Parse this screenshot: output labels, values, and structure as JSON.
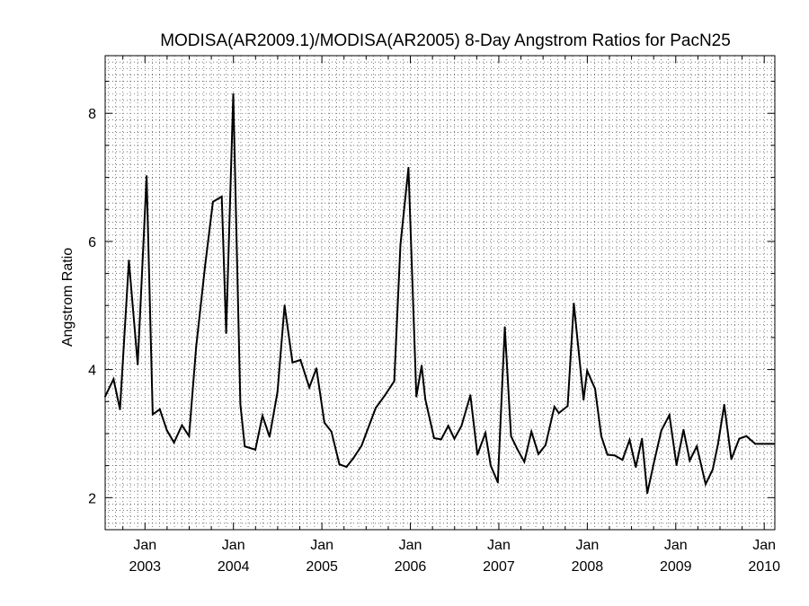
{
  "chart_data": {
    "type": "line",
    "title": "MODISA(AR2009.1)/MODISA(AR2005) 8-Day Angstrom Ratios for PacN25",
    "xlabel": "",
    "ylabel": "Angstrom Ratio",
    "xlim": [
      2002.55,
      2010.12
    ],
    "ylim": [
      1.5,
      8.9
    ],
    "grid": true,
    "y_ticks": [
      {
        "value": 2,
        "label": "2"
      },
      {
        "value": 4,
        "label": "4"
      },
      {
        "value": 6,
        "label": "6"
      },
      {
        "value": 8,
        "label": "8"
      }
    ],
    "x_ticks": [
      {
        "value": 2003,
        "month": "Jan",
        "year": "2003"
      },
      {
        "value": 2004,
        "month": "Jan",
        "year": "2004"
      },
      {
        "value": 2005,
        "month": "Jan",
        "year": "2005"
      },
      {
        "value": 2006,
        "month": "Jan",
        "year": "2006"
      },
      {
        "value": 2007,
        "month": "Jan",
        "year": "2007"
      },
      {
        "value": 2008,
        "month": "Jan",
        "year": "2008"
      },
      {
        "value": 2009,
        "month": "Jan",
        "year": "2009"
      },
      {
        "value": 2010,
        "month": "Jan",
        "year": "2010"
      }
    ],
    "series": [
      {
        "color": "#000000",
        "x": [
          2002.55,
          2002.645,
          2002.718,
          2002.818,
          2002.918,
          2003.018,
          2003.088,
          2003.168,
          2003.248,
          2003.328,
          2003.418,
          2003.498,
          2003.578,
          2003.678,
          2003.768,
          2003.868,
          2003.918,
          2003.998,
          2004.078,
          2004.128,
          2004.248,
          2004.328,
          2004.408,
          2004.498,
          2004.578,
          2004.668,
          2004.758,
          2004.858,
          2004.938,
          2005.028,
          2005.108,
          2005.198,
          2005.278,
          2005.358,
          2005.448,
          2005.608,
          2005.708,
          2005.818,
          2005.888,
          2005.978,
          2006.068,
          2006.128,
          2006.168,
          2006.268,
          2006.348,
          2006.428,
          2006.498,
          2006.578,
          2006.678,
          2006.758,
          2006.848,
          2006.908,
          2006.988,
          2007.068,
          2007.138,
          2007.208,
          2007.288,
          2007.368,
          2007.448,
          2007.528,
          2007.628,
          2007.678,
          2007.778,
          2007.848,
          2007.958,
          2007.998,
          2008.088,
          2008.158,
          2008.228,
          2008.308,
          2008.398,
          2008.478,
          2008.548,
          2008.618,
          2008.678,
          2008.758,
          2008.838,
          2008.928,
          2009.008,
          2009.088,
          2009.158,
          2009.238,
          2009.338,
          2009.418,
          2009.478,
          2009.548,
          2009.628,
          2009.718,
          2009.798,
          2009.898,
          2009.978,
          2010.048,
          2010.108
        ],
        "y": [
          3.58,
          3.85,
          3.38,
          5.7,
          4.08,
          7.02,
          3.3,
          3.38,
          3.05,
          2.86,
          3.13,
          2.96,
          4.35,
          5.6,
          6.62,
          6.7,
          4.57,
          8.3,
          3.46,
          2.8,
          2.75,
          3.28,
          2.95,
          3.65,
          5.0,
          4.11,
          4.15,
          3.72,
          4.02,
          3.17,
          3.03,
          2.52,
          2.48,
          2.62,
          2.81,
          3.4,
          3.59,
          3.82,
          5.95,
          7.15,
          3.58,
          4.06,
          3.54,
          2.93,
          2.91,
          3.12,
          2.92,
          3.12,
          3.6,
          2.67,
          3.01,
          2.5,
          2.24,
          4.66,
          2.96,
          2.76,
          2.56,
          3.03,
          2.68,
          2.82,
          3.42,
          3.32,
          3.43,
          5.03,
          3.53,
          3.98,
          3.7,
          2.96,
          2.67,
          2.66,
          2.59,
          2.9,
          2.48,
          2.92,
          2.07,
          2.58,
          3.05,
          3.29,
          2.51,
          3.06,
          2.58,
          2.8,
          2.21,
          2.44,
          2.84,
          3.45,
          2.6,
          2.92,
          2.96,
          2.84,
          2.84,
          2.84,
          2.84
        ]
      }
    ]
  }
}
